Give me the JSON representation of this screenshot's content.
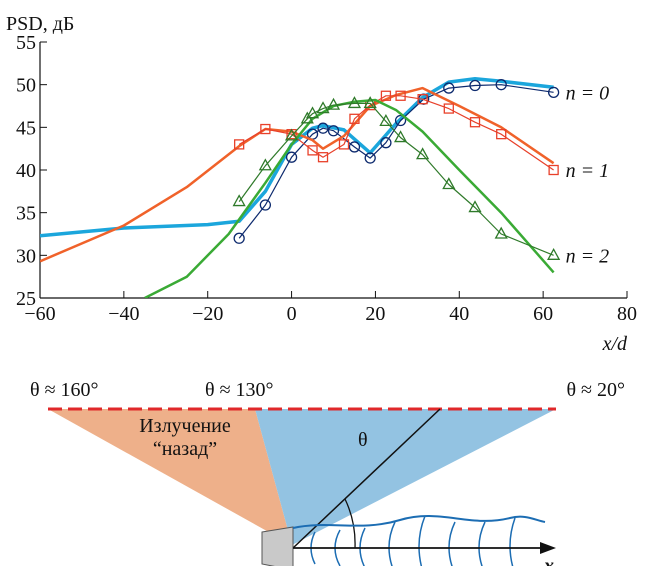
{
  "chart_data": {
    "type": "line",
    "ylabel": "PSD, дБ",
    "xlabel": "x/d",
    "xlim": [
      -60,
      80
    ],
    "xticks": [
      {
        "value": -60,
        "label": "−60"
      },
      {
        "value": -40,
        "label": "−40"
      },
      {
        "value": -20,
        "label": "−20"
      },
      0,
      20,
      40,
      60,
      80
    ],
    "ylim": [
      25,
      55
    ],
    "yticks": [
      25,
      30,
      35,
      40,
      45,
      50,
      55
    ],
    "series": [
      {
        "color": "#1ba6dc",
        "line_width": 3.5,
        "x": [
          -60,
          -40,
          -20,
          -12.5,
          -6.25,
          0,
          5,
          7.5,
          12.5,
          18.75,
          25,
          31.25,
          37.5,
          43.75,
          50,
          62.5
        ],
        "values": [
          32.3,
          33.2,
          33.6,
          34,
          37.5,
          43,
          44.9,
          45.2,
          44.7,
          42,
          45.5,
          48.5,
          50.3,
          50.7,
          50.4,
          49.7
        ]
      },
      {
        "name": "n = 0",
        "color": "#0d2a6e",
        "marker": "circle",
        "line_width": 1.2,
        "x": [
          -12.5,
          -6.25,
          0,
          5,
          7.5,
          10,
          15,
          18.75,
          22.5,
          26,
          31.5,
          37.5,
          43.75,
          50,
          62.5
        ],
        "values": [
          32,
          35.9,
          41.5,
          44.2,
          44.9,
          44.6,
          42.7,
          41.4,
          43.2,
          45.8,
          48.3,
          49.6,
          49.9,
          50,
          49.1
        ]
      },
      {
        "color": "#f0622a",
        "line_width": 2.5,
        "x": [
          -60,
          -40,
          -25,
          -12.5,
          -6.25,
          0,
          5,
          7.5,
          12.5,
          18.75,
          25,
          31.25,
          40,
          50,
          62.5
        ],
        "values": [
          29.3,
          33.5,
          38,
          42.8,
          44.8,
          44.5,
          43.5,
          42.5,
          44,
          47.5,
          48.8,
          49.6,
          47.5,
          45,
          40.8
        ]
      },
      {
        "name": "n = 1",
        "color": "#e8402a",
        "marker": "square",
        "line_width": 1.2,
        "x": [
          -12.5,
          -6.25,
          0,
          5,
          7.5,
          12.5,
          15,
          18.75,
          22.5,
          26,
          31.25,
          37.5,
          43.75,
          50,
          62.5
        ],
        "values": [
          43,
          44.8,
          44.2,
          42.3,
          41.5,
          43,
          46,
          47.6,
          48.7,
          48.7,
          48.3,
          47.2,
          45.6,
          44.2,
          40
        ]
      },
      {
        "color": "#3aaa35",
        "line_width": 2.5,
        "x": [
          -35,
          -25,
          -15,
          -6.25,
          0,
          5,
          10,
          15,
          20,
          25,
          31.25,
          40,
          50,
          62.5
        ],
        "values": [
          25,
          27.5,
          32.5,
          38.5,
          43,
          46,
          47.5,
          48,
          48.2,
          47,
          44.5,
          40,
          35,
          28
        ]
      },
      {
        "name": "n = 2",
        "color": "#2f7a2a",
        "marker": "triangle",
        "line_width": 1.2,
        "x": [
          -12.5,
          -6.25,
          0,
          3.75,
          5,
          7.5,
          10,
          15,
          18.75,
          22.5,
          26,
          31.25,
          37.5,
          43.75,
          50,
          62.5
        ],
        "values": [
          36.3,
          40.5,
          44,
          46,
          46.6,
          47.2,
          47.6,
          47.8,
          47.8,
          45.7,
          43.8,
          41.8,
          38.3,
          35.6,
          32.5,
          30
        ]
      }
    ]
  },
  "diagram": {
    "angle_labels": [
      "θ ≈ 160°",
      "θ ≈ 130°",
      "θ ≈ 20°"
    ],
    "region_label": [
      "Излучение",
      "“назад”"
    ],
    "angle_symbol": "θ",
    "axis_label": "x"
  }
}
